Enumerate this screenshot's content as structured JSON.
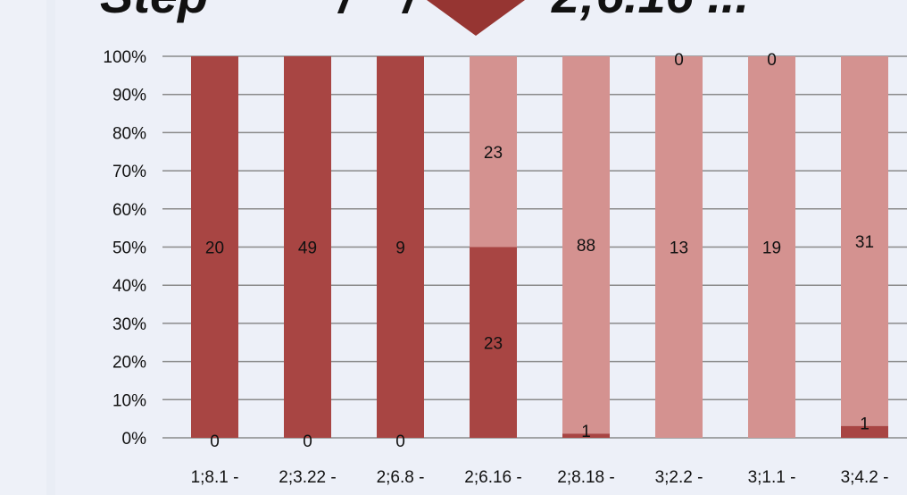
{
  "slide": {
    "title_fragments": [
      "Step",
      "/",
      "/",
      "2;6.16 ..."
    ]
  },
  "colors": {
    "dark_series": "#a84543",
    "light_series": "#d49290",
    "arrow": "#963532",
    "gridline": "#8a8a8a"
  },
  "chart_data": {
    "type": "bar",
    "stacked": true,
    "percent_stacked": true,
    "categories": [
      "1;8.1 -",
      "2;3.22 -",
      "2;6.8 -",
      "2;6.16 -",
      "2;8.18 -",
      "3;2.2 -",
      "3;1.1 -",
      "3;4.2 -"
    ],
    "series": [
      {
        "color": "#a84543",
        "values": [
          20,
          49,
          9,
          23,
          1,
          0,
          0,
          1
        ]
      },
      {
        "color": "#d49290",
        "values": [
          0,
          0,
          0,
          23,
          88,
          13,
          19,
          31
        ]
      }
    ],
    "ylim": [
      0,
      100
    ],
    "yticks": [
      "0%",
      "10%",
      "20%",
      "30%",
      "40%",
      "50%",
      "60%",
      "70%",
      "80%",
      "90%",
      "100%"
    ],
    "grid": true,
    "legend": "none"
  }
}
